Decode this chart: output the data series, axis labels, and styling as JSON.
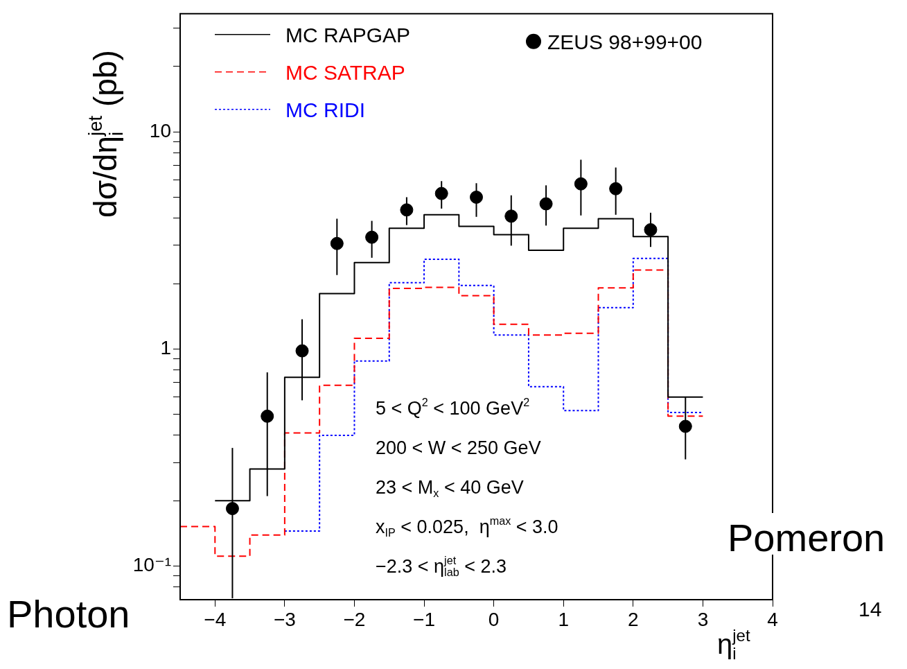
{
  "chart_data": {
    "type": "step",
    "xlabel": "η$_{i}$$^{jet}$",
    "ylabel": "dσ/dη$_{i}$$^{jet}$ (pb)",
    "log": "y",
    "grid": false,
    "legend": "top",
    "xlim": [
      -4.5,
      4
    ],
    "xticks": [
      -4,
      -3,
      -2,
      -1,
      0,
      1,
      2,
      3,
      4
    ],
    "ylim": [
      0.07,
      35
    ],
    "yticks": [
      {
        "value": 0.08,
        "label": null
      },
      {
        "value": 0.09,
        "label": null
      },
      {
        "value": 0.1,
        "label": "10⁻¹"
      },
      {
        "value": 0.2,
        "label": null
      },
      {
        "value": 0.3,
        "label": null
      },
      {
        "value": 0.4,
        "label": null
      },
      {
        "value": 0.5,
        "label": null
      },
      {
        "value": 0.6,
        "label": null
      },
      {
        "value": 0.7,
        "label": null
      },
      {
        "value": 0.8,
        "label": null
      },
      {
        "value": 0.9,
        "label": null
      },
      1,
      {
        "value": 2,
        "label": null
      },
      {
        "value": 3,
        "label": null
      },
      {
        "value": 4,
        "label": null
      },
      {
        "value": 5,
        "label": null
      },
      {
        "value": 6,
        "label": null
      },
      {
        "value": 7,
        "label": null
      },
      {
        "value": 8,
        "label": null
      },
      {
        "value": 9,
        "label": null
      },
      10,
      {
        "value": 20,
        "label": null
      },
      {
        "value": 30,
        "label": null
      }
    ],
    "series": [
      {
        "name": "MC RAPGAP",
        "color": "#000000",
        "line_style": "solid",
        "x": [
          -4,
          -3.5,
          -3,
          -2.5,
          -2,
          -1.5,
          -1,
          -0.5,
          0,
          0.5,
          1,
          1.5,
          2,
          2.5,
          3
        ],
        "values": [
          0.2,
          0.28,
          0.74,
          1.8,
          2.5,
          3.6,
          4.15,
          3.67,
          3.36,
          2.85,
          3.6,
          3.98,
          3.29,
          0.6,
          0.6
        ]
      },
      {
        "name": "MC SATRAP",
        "color": "#ff0000",
        "line_style": "dashed",
        "x": [
          -4.5,
          -4,
          -3.5,
          -3,
          -2.5,
          -2,
          -1.5,
          -1,
          -0.5,
          0,
          0.5,
          1,
          1.5,
          2,
          2.5,
          3
        ],
        "values": [
          0.152,
          0.111,
          0.139,
          0.41,
          0.68,
          1.12,
          1.9,
          1.92,
          1.76,
          1.3,
          1.16,
          1.18,
          1.91,
          2.31,
          0.49,
          0.49
        ]
      },
      {
        "name": "MC RIDI",
        "color": "#0000ff",
        "line_style": "dotted",
        "x": [
          -3,
          -2.5,
          -2,
          -1.5,
          -1,
          -0.5,
          0,
          0.5,
          1,
          1.5,
          2,
          2.5,
          3
        ],
        "values": [
          0.145,
          0.4,
          0.88,
          2.02,
          2.59,
          1.96,
          1.16,
          0.67,
          0.52,
          1.55,
          2.61,
          0.51,
          0.51
        ]
      },
      {
        "name": "ZEUS 98+99+00",
        "type": "scatter",
        "color": "#000000",
        "marker": "circle",
        "x": [
          -3.75,
          -3.25,
          -2.75,
          -2.25,
          -1.75,
          -1.25,
          -0.75,
          -0.25,
          0.25,
          0.75,
          1.25,
          1.75,
          2.25,
          2.75
        ],
        "values": [
          0.184,
          0.49,
          0.98,
          3.06,
          3.27,
          4.37,
          5.2,
          5.0,
          4.09,
          4.66,
          5.76,
          5.47,
          3.54,
          0.44
        ],
        "errors": [
          [
            0.071,
            0.35
          ],
          [
            0.21,
            0.78
          ],
          [
            0.58,
            1.37
          ],
          [
            2.19,
            3.98
          ],
          [
            2.63,
            3.89
          ],
          [
            3.72,
            5.0
          ],
          [
            4.43,
            5.93
          ],
          [
            4.06,
            5.8
          ],
          [
            2.99,
            5.1
          ],
          [
            3.7,
            5.67
          ],
          [
            4.12,
            7.44
          ],
          [
            4.15,
            6.85
          ],
          [
            2.95,
            4.24
          ],
          [
            0.31,
            0.6
          ]
        ]
      }
    ],
    "annotations": [
      "5 < Q$^{2}$ < 100 GeV$^{2}$",
      "200 < W < 250 GeV",
      "23 < M$_{x}$ < 40 GeV",
      "x$_{IP}$ < 0.025,  η$^{max}$ < 3.0",
      "−2.3 < η$^{jet}$$_{lab}$ < 2.3",
      "Photon",
      "Pomeron",
      "14"
    ]
  }
}
